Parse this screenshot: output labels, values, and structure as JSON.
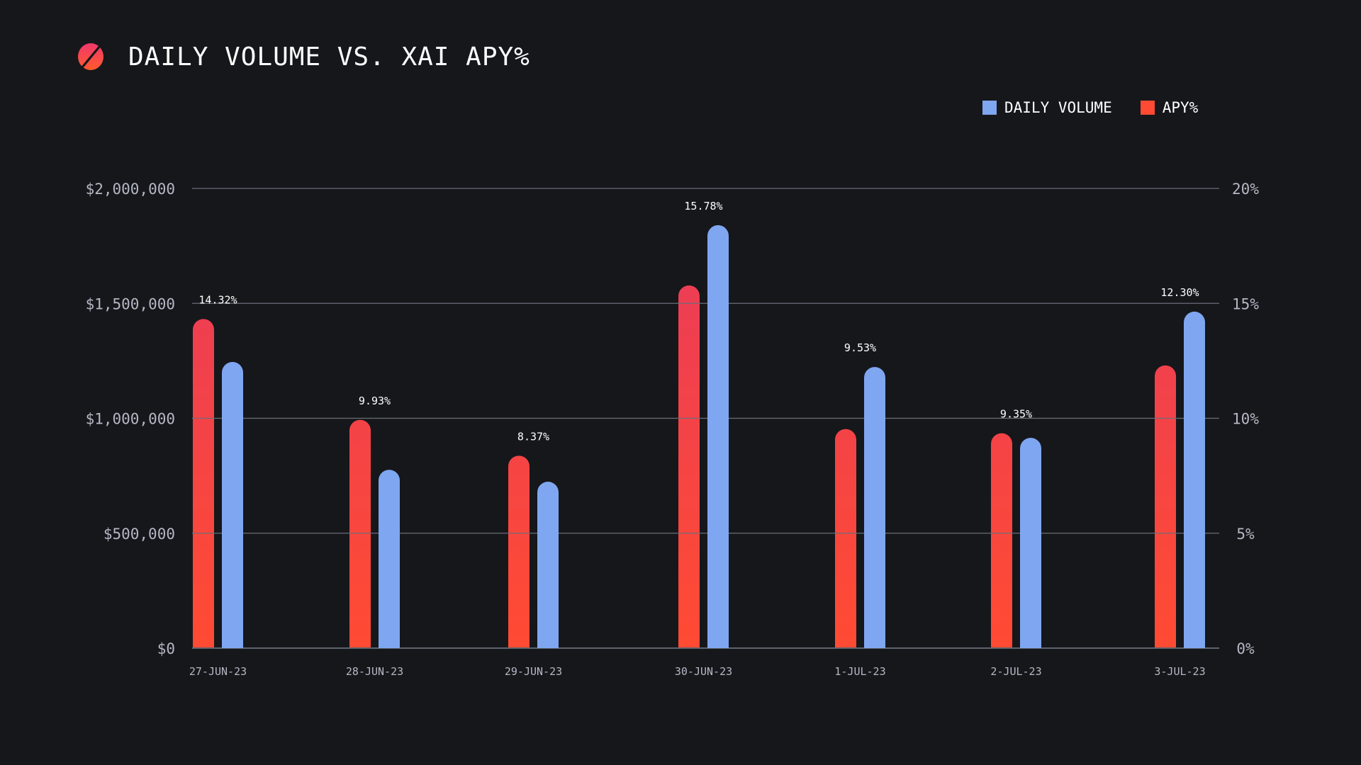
{
  "header": {
    "title": "DAILY VOLUME VS. XAI APY%",
    "logo_icon": "slashed-circle-logo-icon"
  },
  "legend": [
    {
      "label": "DAILY VOLUME",
      "color": "#7fa6f0"
    },
    {
      "label": "APY%",
      "color": "#ff4b33"
    }
  ],
  "colors": {
    "background": "#16171b",
    "volume": "#7fa6f0",
    "apy_top": "#e83a5c",
    "apy_bottom": "#ff4b33",
    "grid": "#6a6e78",
    "axis_text": "#b4b8c4"
  },
  "chart_data": {
    "type": "bar",
    "title": "DAILY VOLUME VS. XAI APY%",
    "categories": [
      "27-JUN-23",
      "28-JUN-23",
      "29-JUN-23",
      "30-JUN-23",
      "1-JUL-23",
      "2-JUL-23",
      "3-JUL-23"
    ],
    "series": [
      {
        "name": "APY%",
        "axis": "right",
        "values": [
          14.32,
          9.93,
          8.37,
          15.78,
          9.53,
          9.35,
          12.3
        ],
        "labels": [
          "14.32%",
          "9.93%",
          "8.37%",
          "15.78%",
          "9.53%",
          "9.35%",
          "12.30%"
        ]
      },
      {
        "name": "DAILY VOLUME",
        "axis": "left",
        "values": [
          1245000,
          776000,
          724000,
          1840000,
          1223000,
          915000,
          1464000
        ]
      }
    ],
    "left_axis": {
      "ylim": [
        0,
        2000000
      ],
      "ticks": [
        0,
        500000,
        1000000,
        1500000,
        2000000
      ],
      "tick_labels": [
        "$0",
        "$500,000",
        "$1,000,000",
        "$1,500,000",
        "$2,000,000"
      ]
    },
    "right_axis": {
      "ylim": [
        0,
        20
      ],
      "ticks": [
        0,
        5,
        10,
        15,
        20
      ],
      "tick_labels": [
        "0%",
        "5%",
        "10%",
        "15%",
        "20%"
      ]
    },
    "grid": true,
    "legend_position": "top-right"
  }
}
